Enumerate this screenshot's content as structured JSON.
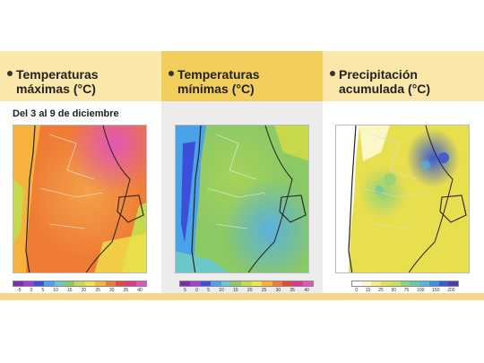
{
  "panels": [
    {
      "title_line1": "Temperaturas",
      "title_line2": "máximas (°C)",
      "subtitle": "Del 3 al 9 de diciembre",
      "scale_colors": [
        "#7a2bb0",
        "#a23fd0",
        "#3b4fd8",
        "#4aa3e8",
        "#6cc7c9",
        "#8bc965",
        "#c7d84b",
        "#f0e24a",
        "#f7b23b",
        "#ef7b34",
        "#e2493a",
        "#d63a8f",
        "#e056b6"
      ],
      "scale_ticks": [
        "-5",
        "0",
        "5",
        "10",
        "15",
        "20",
        "25",
        "30",
        "35",
        "40"
      ]
    },
    {
      "title_line1": "Temperaturas",
      "title_line2": "mínimas (°C)",
      "scale_colors": [
        "#7a2bb0",
        "#a23fd0",
        "#3b4fd8",
        "#4aa3e8",
        "#6cc7c9",
        "#8bc965",
        "#c7d84b",
        "#f0e24a",
        "#f7b23b",
        "#ef7b34",
        "#e2493a",
        "#d63a8f",
        "#e056b6"
      ],
      "scale_ticks": [
        "5",
        "0",
        "5",
        "10",
        "15",
        "20",
        "25",
        "30",
        "35",
        "40"
      ]
    },
    {
      "title_line1": "Precipitación",
      "title_line2": "acumulada (°C)",
      "scale_colors": [
        "#ffffff",
        "#fbf7c7",
        "#f3ec85",
        "#e8df4f",
        "#cde05a",
        "#8fd27a",
        "#6cc7a3",
        "#56b3d9",
        "#3f8de0",
        "#3b5ad0",
        "#4a3bb8"
      ],
      "scale_ticks": [
        "0",
        "10",
        "25",
        "50",
        "75",
        "100",
        "150",
        "200"
      ]
    }
  ],
  "palette": {
    "header_light": "#fbe7a9",
    "header_dark": "#f2cf5c",
    "panel_gray": "#ececec",
    "bottom_strip": "#f4d98a"
  }
}
